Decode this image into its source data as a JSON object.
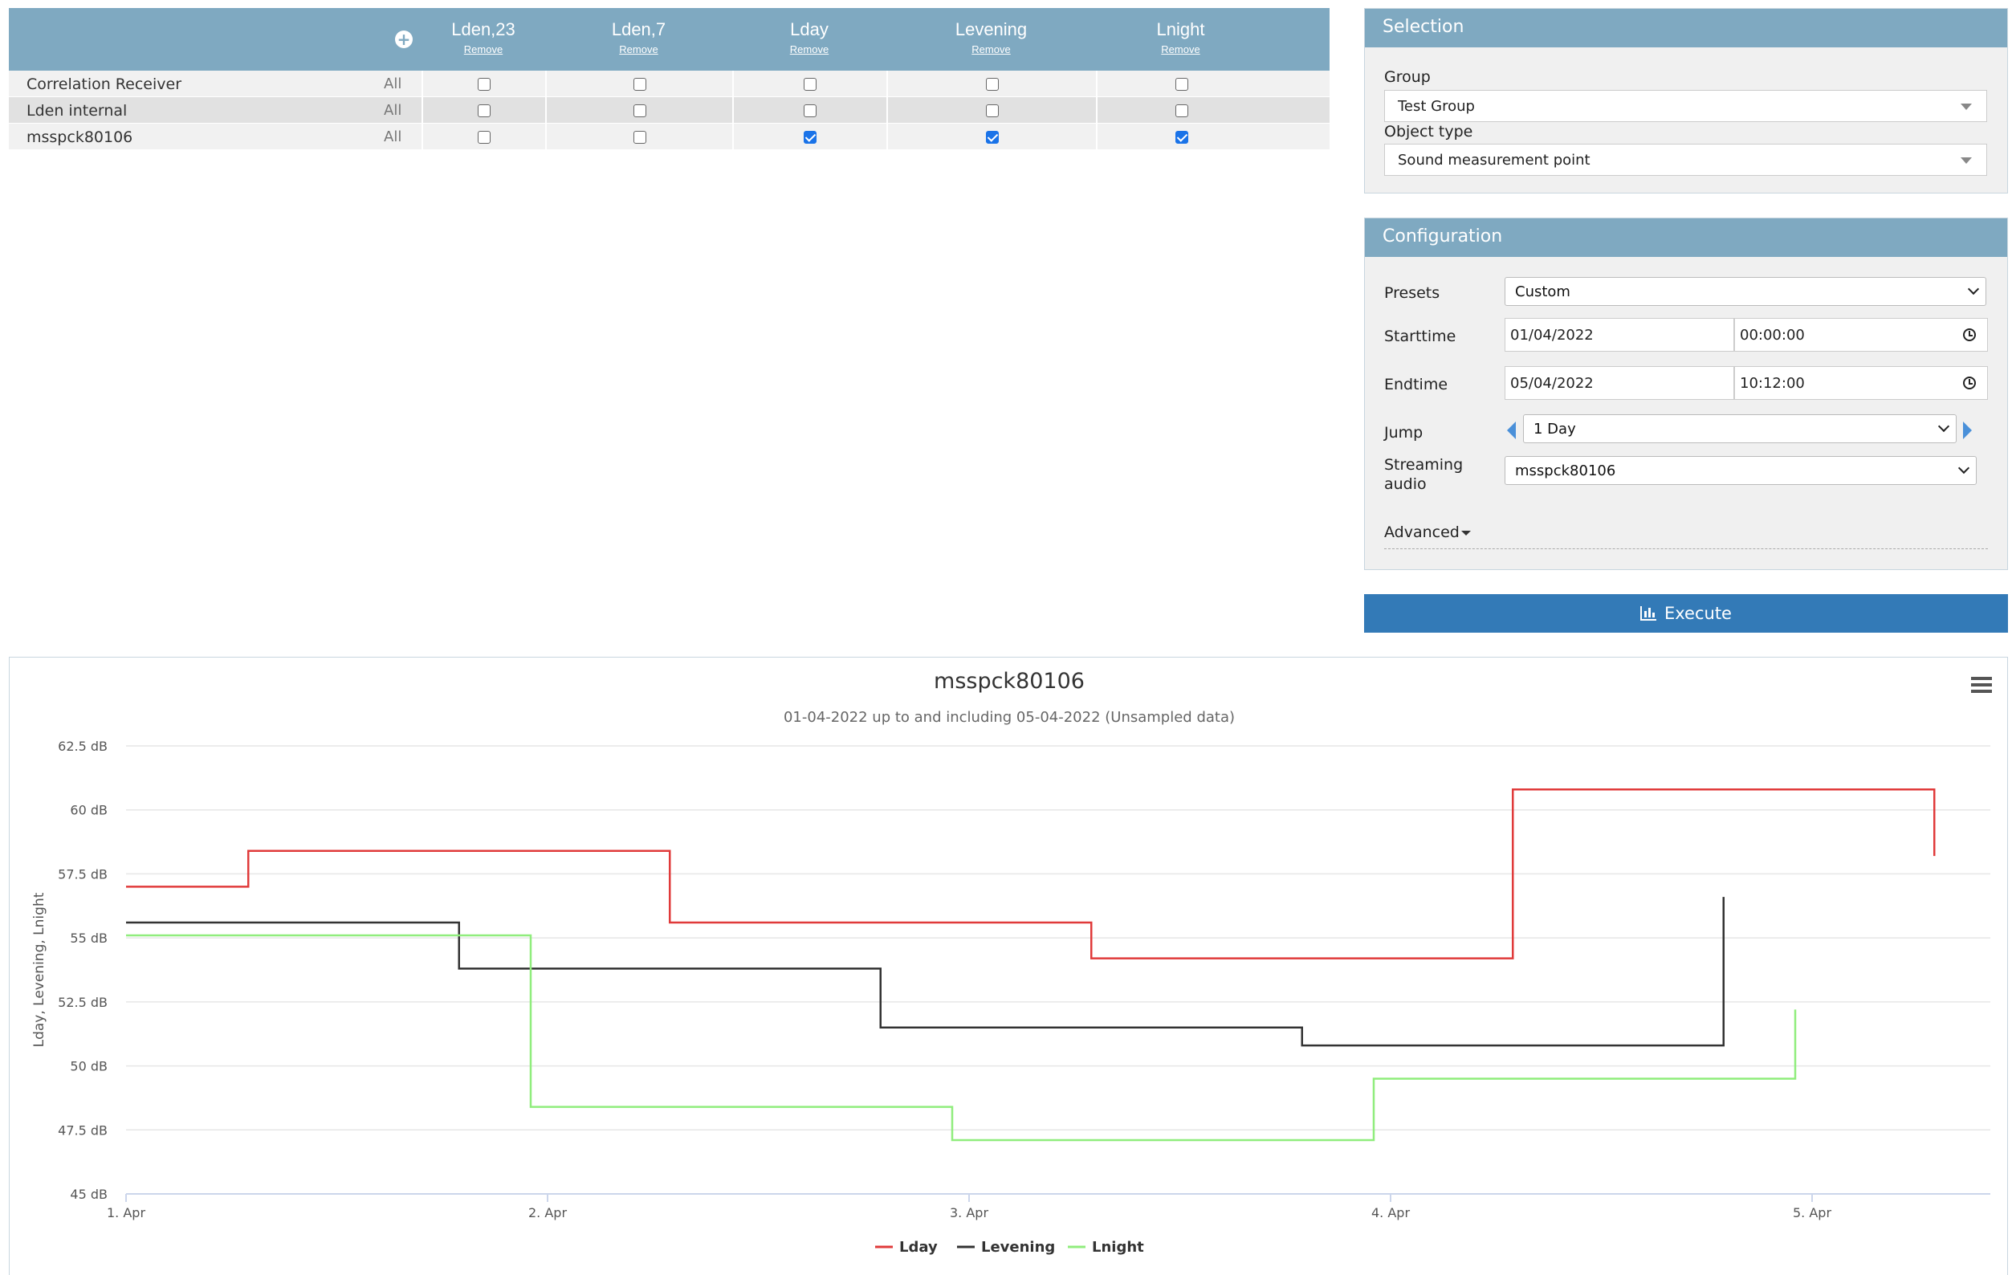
{
  "matrix": {
    "columns": [
      {
        "title": "Lden,23",
        "remove": "Remove"
      },
      {
        "title": "Lden,7",
        "remove": "Remove"
      },
      {
        "title": "Lday",
        "remove": "Remove"
      },
      {
        "title": "Levening",
        "remove": "Remove"
      },
      {
        "title": "Lnight",
        "remove": "Remove"
      }
    ],
    "rows": [
      {
        "name": "Correlation Receiver",
        "all": "All",
        "checked": [
          false,
          false,
          false,
          false,
          false
        ]
      },
      {
        "name": "Lden internal",
        "all": "All",
        "checked": [
          false,
          false,
          false,
          false,
          false
        ]
      },
      {
        "name": "msspck80106",
        "all": "All",
        "checked": [
          false,
          false,
          true,
          true,
          true
        ]
      }
    ]
  },
  "selection": {
    "title": "Selection",
    "group_label": "Group",
    "group_value": "Test Group",
    "object_type_label": "Object type",
    "object_type_value": "Sound measurement point"
  },
  "configuration": {
    "title": "Configuration",
    "presets_label": "Presets",
    "presets_value": "Custom",
    "starttime_label": "Starttime",
    "start_date": "01/04/2022",
    "start_time": "00:00:00",
    "endtime_label": "Endtime",
    "end_date": "05/04/2022",
    "end_time": "10:12:00",
    "jump_label": "Jump",
    "jump_value": "1 Day",
    "streaming_label_1": "Streaming",
    "streaming_label_2": "audio",
    "streaming_value": "msspck80106",
    "advanced_label": "Advanced"
  },
  "execute_label": "Execute",
  "colors": {
    "header": "#7fa9c1",
    "execute": "#337ab7",
    "lday": "#e03a3a",
    "levening": "#333333",
    "lnight": "#90ed7d"
  },
  "chart_data": {
    "type": "line",
    "step": true,
    "title": "msspck80106",
    "subtitle": "01-04-2022 up to and including 05-04-2022 (Unsampled data)",
    "ylabel": "Lday, Levening, Lnight",
    "y_unit": "dB",
    "ylim": [
      45,
      62.5
    ],
    "y_ticks": [
      45,
      47.5,
      50,
      52.5,
      55,
      57.5,
      60,
      62.5
    ],
    "y_tick_labels": [
      "45 dB",
      "47.5 dB",
      "50 dB",
      "52.5 dB",
      "55 dB",
      "57.5 dB",
      "60 dB",
      "62.5 dB"
    ],
    "x_ticks": [
      "1. Apr",
      "2. Apr",
      "3. Apr",
      "4. Apr",
      "5. Apr"
    ],
    "xlim": [
      0,
      4.4
    ],
    "grid": true,
    "legend_position": "bottom-center",
    "series": [
      {
        "name": "Lday",
        "color": "#e03a3a",
        "x": [
          0,
          0.29,
          1.29,
          2.29,
          3.29,
          4.29
        ],
        "values": [
          57.0,
          58.4,
          55.6,
          54.2,
          60.8,
          58.2
        ]
      },
      {
        "name": "Levening",
        "color": "#333333",
        "x": [
          0,
          0.79,
          1.79,
          2.79,
          3.79
        ],
        "values": [
          55.6,
          53.8,
          51.5,
          50.8,
          56.6
        ]
      },
      {
        "name": "Lnight",
        "color": "#90ed7d",
        "x": [
          0,
          0.96,
          1.96,
          2.96,
          3.96
        ],
        "values": [
          55.1,
          48.4,
          47.1,
          49.5,
          52.2
        ]
      }
    ]
  }
}
